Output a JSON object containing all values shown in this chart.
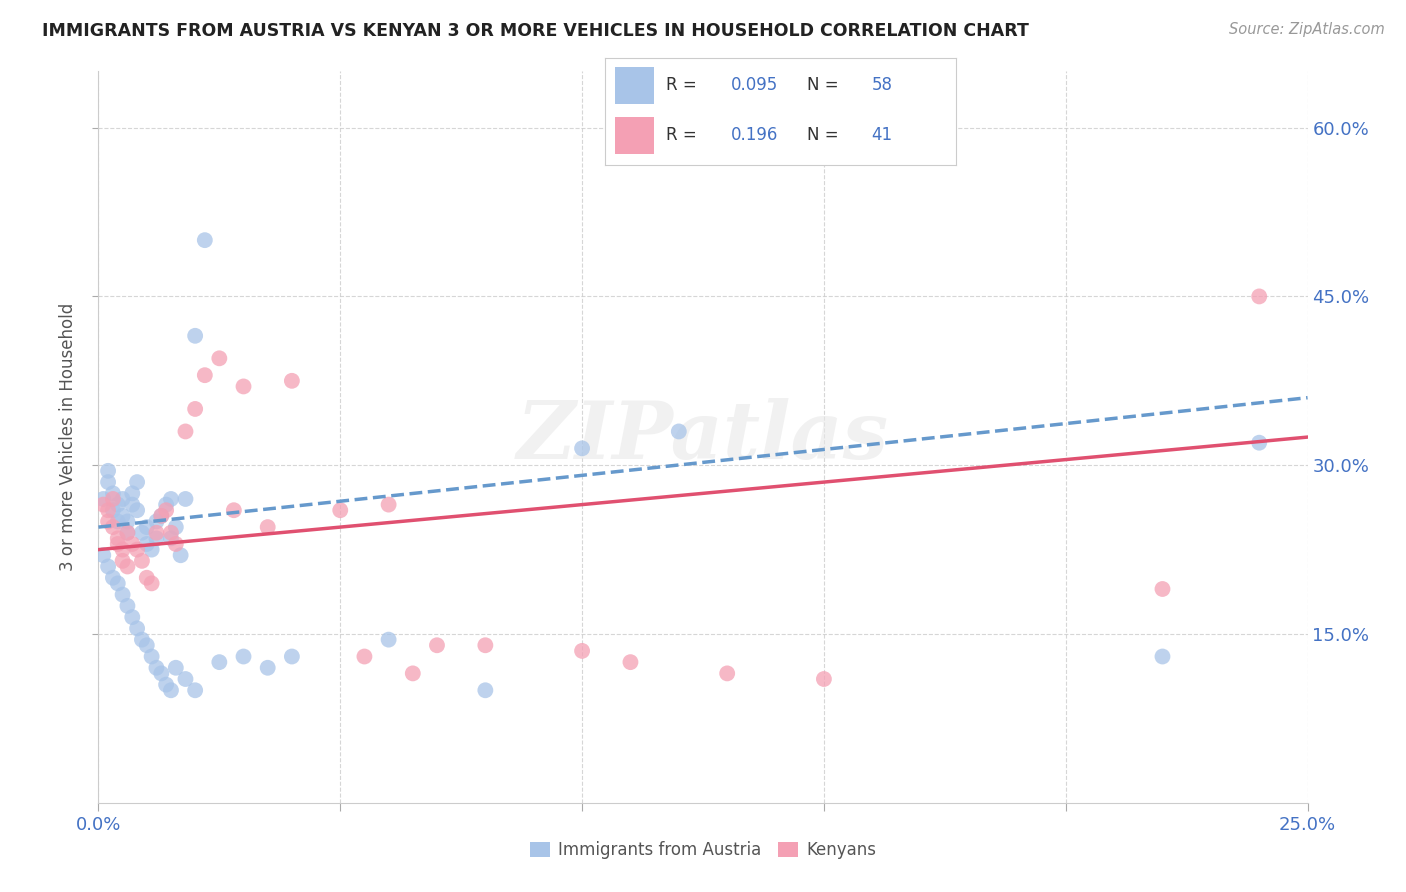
{
  "title": "IMMIGRANTS FROM AUSTRIA VS KENYAN 3 OR MORE VEHICLES IN HOUSEHOLD CORRELATION CHART",
  "source": "Source: ZipAtlas.com",
  "ylabel": "3 or more Vehicles in Household",
  "xlim": [
    0.0,
    0.25
  ],
  "ylim": [
    0.0,
    0.65
  ],
  "xtick_positions": [
    0.0,
    0.05,
    0.1,
    0.15,
    0.2,
    0.25
  ],
  "xtick_labels": [
    "0.0%",
    "",
    "",
    "",
    "",
    "25.0%"
  ],
  "ytick_positions": [
    0.15,
    0.3,
    0.45,
    0.6
  ],
  "ytick_labels": [
    "15.0%",
    "30.0%",
    "45.0%",
    "60.0%"
  ],
  "series1_label": "Immigrants from Austria",
  "series2_label": "Kenyans",
  "series1_R": 0.095,
  "series1_N": 58,
  "series2_R": 0.196,
  "series2_N": 41,
  "color_blue": "#a8c4e8",
  "color_pink": "#f4a0b4",
  "trendline_blue_color": "#6699cc",
  "trendline_pink_color": "#e05070",
  "watermark": "ZIPatlas",
  "background_color": "#ffffff",
  "grid_color": "#cccccc",
  "scatter_size": 130,
  "scatter_alpha": 0.75,
  "series1_x": [
    0.001,
    0.002,
    0.002,
    0.003,
    0.003,
    0.004,
    0.004,
    0.005,
    0.005,
    0.006,
    0.006,
    0.007,
    0.007,
    0.008,
    0.008,
    0.009,
    0.01,
    0.01,
    0.011,
    0.012,
    0.012,
    0.013,
    0.014,
    0.015,
    0.015,
    0.016,
    0.017,
    0.018,
    0.02,
    0.022,
    0.001,
    0.002,
    0.003,
    0.004,
    0.005,
    0.006,
    0.007,
    0.008,
    0.009,
    0.01,
    0.011,
    0.012,
    0.013,
    0.014,
    0.015,
    0.016,
    0.018,
    0.02,
    0.025,
    0.03,
    0.035,
    0.04,
    0.06,
    0.08,
    0.1,
    0.12,
    0.22,
    0.24
  ],
  "series1_y": [
    0.27,
    0.285,
    0.295,
    0.26,
    0.275,
    0.25,
    0.265,
    0.255,
    0.27,
    0.25,
    0.24,
    0.265,
    0.275,
    0.285,
    0.26,
    0.24,
    0.245,
    0.23,
    0.225,
    0.235,
    0.25,
    0.255,
    0.265,
    0.27,
    0.235,
    0.245,
    0.22,
    0.27,
    0.415,
    0.5,
    0.22,
    0.21,
    0.2,
    0.195,
    0.185,
    0.175,
    0.165,
    0.155,
    0.145,
    0.14,
    0.13,
    0.12,
    0.115,
    0.105,
    0.1,
    0.12,
    0.11,
    0.1,
    0.125,
    0.13,
    0.12,
    0.13,
    0.145,
    0.1,
    0.315,
    0.33,
    0.13,
    0.32
  ],
  "series2_x": [
    0.001,
    0.002,
    0.002,
    0.003,
    0.003,
    0.004,
    0.004,
    0.005,
    0.005,
    0.006,
    0.006,
    0.007,
    0.008,
    0.009,
    0.01,
    0.011,
    0.012,
    0.013,
    0.014,
    0.015,
    0.016,
    0.018,
    0.02,
    0.022,
    0.025,
    0.028,
    0.03,
    0.035,
    0.04,
    0.05,
    0.055,
    0.06,
    0.065,
    0.07,
    0.08,
    0.1,
    0.11,
    0.13,
    0.15,
    0.22,
    0.24
  ],
  "series2_y": [
    0.265,
    0.26,
    0.25,
    0.27,
    0.245,
    0.235,
    0.23,
    0.225,
    0.215,
    0.21,
    0.24,
    0.23,
    0.225,
    0.215,
    0.2,
    0.195,
    0.24,
    0.255,
    0.26,
    0.24,
    0.23,
    0.33,
    0.35,
    0.38,
    0.395,
    0.26,
    0.37,
    0.245,
    0.375,
    0.26,
    0.13,
    0.265,
    0.115,
    0.14,
    0.14,
    0.135,
    0.125,
    0.115,
    0.11,
    0.19,
    0.45
  ],
  "trendline1_x0": 0.0,
  "trendline1_x1": 0.25,
  "trendline1_y0": 0.245,
  "trendline1_y1": 0.36,
  "trendline2_x0": 0.0,
  "trendline2_x1": 0.25,
  "trendline2_y0": 0.225,
  "trendline2_y1": 0.325
}
